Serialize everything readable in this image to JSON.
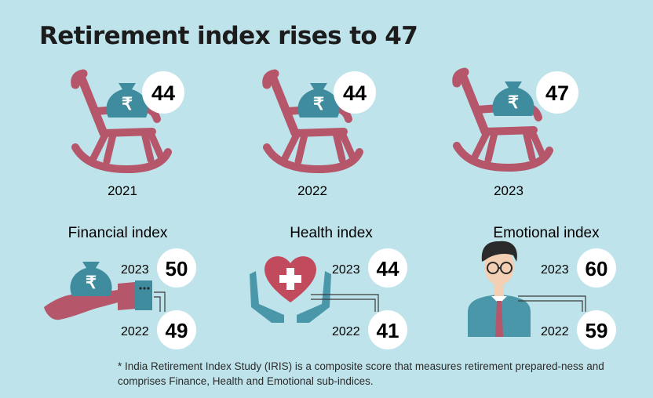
{
  "title": "Retirement index rises to 47",
  "chart_data": [
    {
      "type": "bar",
      "categories": [
        "2021",
        "2022",
        "2023"
      ],
      "values": [
        44,
        44,
        47
      ]
    },
    {
      "type": "bar",
      "title": "Financial index",
      "categories": [
        "2023",
        "2022"
      ],
      "values": [
        50,
        49
      ]
    },
    {
      "type": "bar",
      "title": "Health index",
      "categories": [
        "2023",
        "2022"
      ],
      "values": [
        44,
        41
      ]
    },
    {
      "type": "bar",
      "title": "Emotional index",
      "categories": [
        "2023",
        "2022"
      ],
      "values": [
        60,
        59
      ]
    }
  ],
  "footnote": "* India Retirement Index Study (IRIS) is a composite score that measures retirement prepared-ness and comprises Finance, Health and Emotional sub-indices.",
  "colors": {
    "background": "#bfe3ea",
    "chair": "#b5566a",
    "money_bag": "#3f8c9f",
    "heart": "#c14a5d",
    "hands": "#4b97aa",
    "hand_skin": "#b5566a",
    "sleeve": "#3f8c9f",
    "shirt": "#4b97aa",
    "tie": "#b5566a",
    "hair": "#2a2a2a",
    "skin": "#f3cfb4",
    "badge": "#ffffff",
    "connector": "#3a3a3a"
  }
}
